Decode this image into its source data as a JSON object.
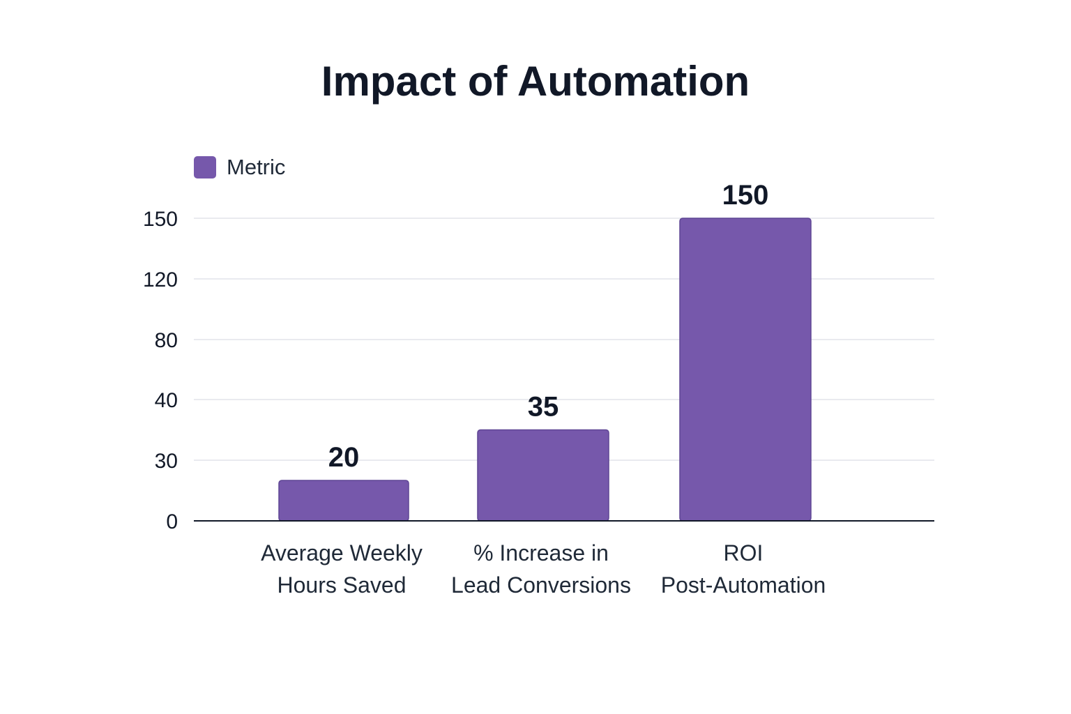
{
  "chart_data": {
    "type": "bar",
    "title": "Impact of Automation",
    "xlabel": "",
    "ylabel": "",
    "categories": [
      [
        "Average Weekly",
        "Hours Saved"
      ],
      [
        "% Increase in",
        "Lead Conversions"
      ],
      [
        "ROI",
        "Post-Automation"
      ]
    ],
    "series": [
      {
        "name": "Metric",
        "values": [
          20,
          35,
          150
        ],
        "color": "#7658ab"
      }
    ],
    "y_ticks": [
      0,
      30,
      40,
      80,
      120,
      150
    ],
    "ylim": [
      0,
      150
    ],
    "grid": true,
    "legend_position": "top-left"
  }
}
